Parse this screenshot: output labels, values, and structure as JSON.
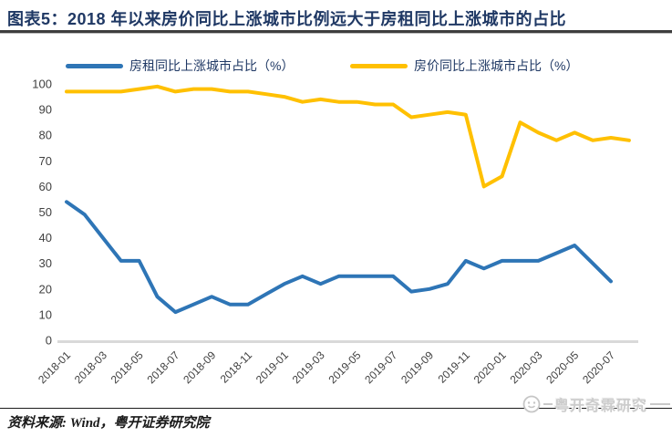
{
  "header": {
    "title": "图表5：2018 年以来房价同比上涨城市比例远大于房租同比上涨城市的占比"
  },
  "legend": [
    {
      "label": "房租同比上涨城市占比（%）",
      "color": "#2E75B6"
    },
    {
      "label": "房价同比上涨城市占比（%）",
      "color": "#FFC000"
    }
  ],
  "footer": {
    "source": "资料来源: Wind，粤开证券研究院",
    "watermark": "粤开奇霖研究"
  },
  "chart_data": {
    "type": "line",
    "title": "2018 年以来房价同比上涨城市比例远大于房租同比上涨城市的占比",
    "xlabel": "",
    "ylabel": "",
    "ylim": [
      0,
      100
    ],
    "ytick_step": 10,
    "xtick_every": 2,
    "grid": false,
    "legend_position": "top",
    "categories": [
      "2018-01",
      "2018-02",
      "2018-03",
      "2018-04",
      "2018-05",
      "2018-06",
      "2018-07",
      "2018-08",
      "2018-09",
      "2018-10",
      "2018-11",
      "2018-12",
      "2019-01",
      "2019-02",
      "2019-03",
      "2019-04",
      "2019-05",
      "2019-06",
      "2019-07",
      "2019-08",
      "2019-09",
      "2019-10",
      "2019-11",
      "2019-12",
      "2020-01",
      "2020-02",
      "2020-03",
      "2020-04",
      "2020-05",
      "2020-06",
      "2020-07",
      "2020-08"
    ],
    "series": [
      {
        "name": "房租同比上涨城市占比（%）",
        "color": "#2E75B6",
        "values": [
          54,
          49,
          40,
          31,
          31,
          17,
          11,
          14,
          17,
          14,
          14,
          18,
          22,
          25,
          22,
          25,
          25,
          25,
          25,
          19,
          20,
          22,
          31,
          28,
          31,
          31,
          31,
          34,
          37,
          30,
          23,
          null
        ]
      },
      {
        "name": "房价同比上涨城市占比（%）",
        "color": "#FFC000",
        "values": [
          97,
          97,
          97,
          97,
          98,
          99,
          97,
          98,
          98,
          97,
          97,
          96,
          95,
          93,
          94,
          93,
          93,
          92,
          92,
          87,
          88,
          89,
          88,
          60,
          64,
          85,
          81,
          78,
          81,
          78,
          79,
          78
        ]
      }
    ]
  }
}
